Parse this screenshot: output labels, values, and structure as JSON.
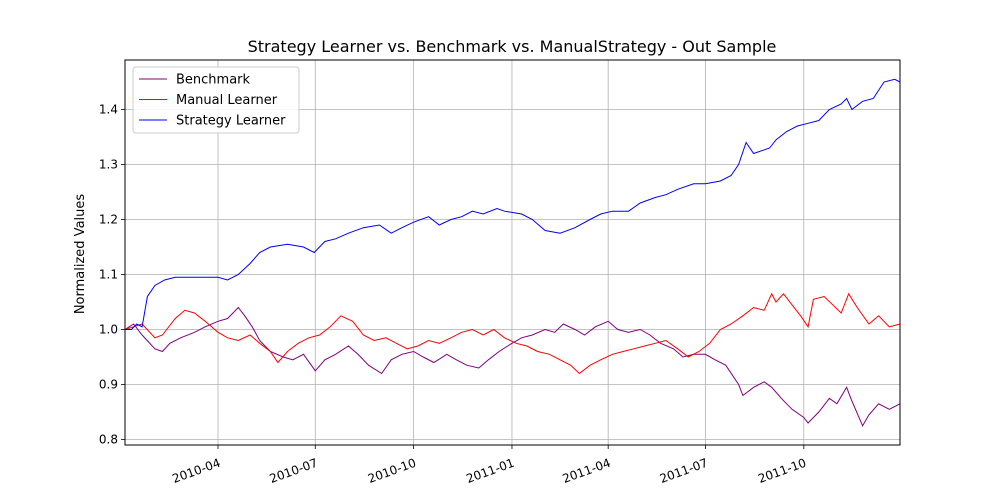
{
  "chart_data": {
    "type": "line",
    "title": "Strategy Learner vs. Benchmark vs. ManualStrategy - Out Sample",
    "xlabel": "",
    "ylabel": "Normalized Values",
    "x_ticks": [
      "2010-04",
      "2010-07",
      "2010-10",
      "2011-01",
      "2011-04",
      "2011-07",
      "2011-10"
    ],
    "x_range": [
      "2010-01-04",
      "2011-12-30"
    ],
    "y_ticks": [
      "0.8",
      "0.9",
      "1.0",
      "1.1",
      "1.2",
      "1.3",
      "1.4"
    ],
    "ylim": [
      0.79,
      1.49
    ],
    "grid": true,
    "legend_position": "upper-left",
    "series": [
      {
        "name": "Benchmark",
        "color": "#800080",
        "points": [
          [
            "2010-01-04",
            1.0
          ],
          [
            "2010-01-12",
            1.01
          ],
          [
            "2010-01-20",
            0.99
          ],
          [
            "2010-02-01",
            0.965
          ],
          [
            "2010-02-08",
            0.96
          ],
          [
            "2010-02-15",
            0.975
          ],
          [
            "2010-02-25",
            0.985
          ],
          [
            "2010-03-10",
            0.995
          ],
          [
            "2010-03-20",
            1.005
          ],
          [
            "2010-04-01",
            1.015
          ],
          [
            "2010-04-10",
            1.02
          ],
          [
            "2010-04-20",
            1.04
          ],
          [
            "2010-04-26",
            1.025
          ],
          [
            "2010-05-03",
            1.005
          ],
          [
            "2010-05-10",
            0.98
          ],
          [
            "2010-05-20",
            0.96
          ],
          [
            "2010-06-01",
            0.95
          ],
          [
            "2010-06-10",
            0.945
          ],
          [
            "2010-06-20",
            0.955
          ],
          [
            "2010-07-01",
            0.925
          ],
          [
            "2010-07-10",
            0.945
          ],
          [
            "2010-07-20",
            0.955
          ],
          [
            "2010-08-01",
            0.97
          ],
          [
            "2010-08-10",
            0.955
          ],
          [
            "2010-08-20",
            0.935
          ],
          [
            "2010-09-01",
            0.92
          ],
          [
            "2010-09-10",
            0.945
          ],
          [
            "2010-09-20",
            0.955
          ],
          [
            "2010-10-01",
            0.96
          ],
          [
            "2010-10-10",
            0.95
          ],
          [
            "2010-10-20",
            0.94
          ],
          [
            "2010-11-01",
            0.955
          ],
          [
            "2010-11-10",
            0.945
          ],
          [
            "2010-11-20",
            0.935
          ],
          [
            "2010-12-01",
            0.93
          ],
          [
            "2010-12-10",
            0.945
          ],
          [
            "2010-12-20",
            0.96
          ],
          [
            "2011-01-01",
            0.975
          ],
          [
            "2011-01-10",
            0.985
          ],
          [
            "2011-01-20",
            0.99
          ],
          [
            "2011-02-01",
            1.0
          ],
          [
            "2011-02-10",
            0.995
          ],
          [
            "2011-02-18",
            1.01
          ],
          [
            "2011-03-01",
            1.0
          ],
          [
            "2011-03-10",
            0.99
          ],
          [
            "2011-03-20",
            1.005
          ],
          [
            "2011-04-01",
            1.015
          ],
          [
            "2011-04-10",
            1.0
          ],
          [
            "2011-04-20",
            0.995
          ],
          [
            "2011-05-01",
            1.0
          ],
          [
            "2011-05-10",
            0.99
          ],
          [
            "2011-05-20",
            0.975
          ],
          [
            "2011-06-01",
            0.965
          ],
          [
            "2011-06-10",
            0.95
          ],
          [
            "2011-06-20",
            0.955
          ],
          [
            "2011-07-01",
            0.955
          ],
          [
            "2011-07-10",
            0.945
          ],
          [
            "2011-07-20",
            0.935
          ],
          [
            "2011-08-01",
            0.9
          ],
          [
            "2011-08-05",
            0.88
          ],
          [
            "2011-08-15",
            0.895
          ],
          [
            "2011-08-25",
            0.905
          ],
          [
            "2011-09-01",
            0.895
          ],
          [
            "2011-09-10",
            0.875
          ],
          [
            "2011-09-20",
            0.855
          ],
          [
            "2011-10-01",
            0.84
          ],
          [
            "2011-10-05",
            0.83
          ],
          [
            "2011-10-15",
            0.85
          ],
          [
            "2011-10-25",
            0.875
          ],
          [
            "2011-11-01",
            0.865
          ],
          [
            "2011-11-10",
            0.895
          ],
          [
            "2011-11-15",
            0.87
          ],
          [
            "2011-11-25",
            0.825
          ],
          [
            "2011-12-01",
            0.845
          ],
          [
            "2011-12-10",
            0.865
          ],
          [
            "2011-12-20",
            0.855
          ],
          [
            "2011-12-30",
            0.865
          ]
        ]
      },
      {
        "name": "Manual Learner",
        "color": "#ff0000",
        "points": [
          [
            "2010-01-04",
            1.0
          ],
          [
            "2010-01-12",
            1.005
          ],
          [
            "2010-01-20",
            1.01
          ],
          [
            "2010-02-01",
            0.985
          ],
          [
            "2010-02-08",
            0.99
          ],
          [
            "2010-02-20",
            1.02
          ],
          [
            "2010-03-01",
            1.035
          ],
          [
            "2010-03-10",
            1.03
          ],
          [
            "2010-03-20",
            1.015
          ],
          [
            "2010-04-01",
            0.995
          ],
          [
            "2010-04-10",
            0.985
          ],
          [
            "2010-04-20",
            0.98
          ],
          [
            "2010-05-01",
            0.99
          ],
          [
            "2010-05-10",
            0.975
          ],
          [
            "2010-05-20",
            0.96
          ],
          [
            "2010-05-27",
            0.94
          ],
          [
            "2010-06-05",
            0.96
          ],
          [
            "2010-06-15",
            0.975
          ],
          [
            "2010-06-25",
            0.985
          ],
          [
            "2010-07-05",
            0.99
          ],
          [
            "2010-07-15",
            1.005
          ],
          [
            "2010-07-25",
            1.025
          ],
          [
            "2010-08-05",
            1.015
          ],
          [
            "2010-08-15",
            0.99
          ],
          [
            "2010-08-25",
            0.98
          ],
          [
            "2010-09-05",
            0.985
          ],
          [
            "2010-09-15",
            0.975
          ],
          [
            "2010-09-25",
            0.965
          ],
          [
            "2010-10-05",
            0.97
          ],
          [
            "2010-10-15",
            0.98
          ],
          [
            "2010-10-25",
            0.975
          ],
          [
            "2010-11-05",
            0.985
          ],
          [
            "2010-11-15",
            0.995
          ],
          [
            "2010-11-25",
            1.0
          ],
          [
            "2010-12-05",
            0.99
          ],
          [
            "2010-12-15",
            1.0
          ],
          [
            "2010-12-25",
            0.985
          ],
          [
            "2011-01-05",
            0.975
          ],
          [
            "2011-01-15",
            0.97
          ],
          [
            "2011-01-25",
            0.96
          ],
          [
            "2011-02-05",
            0.955
          ],
          [
            "2011-02-15",
            0.945
          ],
          [
            "2011-02-25",
            0.935
          ],
          [
            "2011-03-05",
            0.92
          ],
          [
            "2011-03-15",
            0.935
          ],
          [
            "2011-03-25",
            0.945
          ],
          [
            "2011-04-05",
            0.955
          ],
          [
            "2011-04-15",
            0.96
          ],
          [
            "2011-04-25",
            0.965
          ],
          [
            "2011-05-05",
            0.97
          ],
          [
            "2011-05-15",
            0.975
          ],
          [
            "2011-05-25",
            0.98
          ],
          [
            "2011-06-05",
            0.965
          ],
          [
            "2011-06-15",
            0.95
          ],
          [
            "2011-06-25",
            0.96
          ],
          [
            "2011-07-05",
            0.975
          ],
          [
            "2011-07-15",
            1.0
          ],
          [
            "2011-07-25",
            1.01
          ],
          [
            "2011-08-05",
            1.025
          ],
          [
            "2011-08-15",
            1.04
          ],
          [
            "2011-08-25",
            1.035
          ],
          [
            "2011-09-01",
            1.065
          ],
          [
            "2011-09-05",
            1.05
          ],
          [
            "2011-09-12",
            1.065
          ],
          [
            "2011-09-20",
            1.045
          ],
          [
            "2011-09-28",
            1.025
          ],
          [
            "2011-10-05",
            1.005
          ],
          [
            "2011-10-10",
            1.055
          ],
          [
            "2011-10-20",
            1.06
          ],
          [
            "2011-10-28",
            1.045
          ],
          [
            "2011-11-05",
            1.03
          ],
          [
            "2011-11-12",
            1.065
          ],
          [
            "2011-11-20",
            1.04
          ],
          [
            "2011-12-01",
            1.01
          ],
          [
            "2011-12-10",
            1.025
          ],
          [
            "2011-12-20",
            1.005
          ],
          [
            "2011-12-30",
            1.01
          ]
        ]
      },
      {
        "name": "Strategy Learner",
        "color": "#0000ff",
        "points": [
          [
            "2010-01-04",
            1.0
          ],
          [
            "2010-01-10",
            1.0
          ],
          [
            "2010-01-15",
            1.01
          ],
          [
            "2010-01-20",
            1.005
          ],
          [
            "2010-01-25",
            1.06
          ],
          [
            "2010-02-01",
            1.08
          ],
          [
            "2010-02-10",
            1.09
          ],
          [
            "2010-02-20",
            1.095
          ],
          [
            "2010-03-10",
            1.095
          ],
          [
            "2010-04-01",
            1.095
          ],
          [
            "2010-04-10",
            1.09
          ],
          [
            "2010-04-20",
            1.1
          ],
          [
            "2010-05-01",
            1.12
          ],
          [
            "2010-05-10",
            1.14
          ],
          [
            "2010-05-20",
            1.15
          ],
          [
            "2010-06-05",
            1.155
          ],
          [
            "2010-06-20",
            1.15
          ],
          [
            "2010-06-30",
            1.14
          ],
          [
            "2010-07-10",
            1.16
          ],
          [
            "2010-07-20",
            1.165
          ],
          [
            "2010-08-01",
            1.175
          ],
          [
            "2010-08-15",
            1.185
          ],
          [
            "2010-08-30",
            1.19
          ],
          [
            "2010-09-10",
            1.175
          ],
          [
            "2010-09-20",
            1.185
          ],
          [
            "2010-10-01",
            1.195
          ],
          [
            "2010-10-15",
            1.205
          ],
          [
            "2010-10-25",
            1.19
          ],
          [
            "2010-11-05",
            1.2
          ],
          [
            "2010-11-15",
            1.205
          ],
          [
            "2010-11-25",
            1.215
          ],
          [
            "2010-12-05",
            1.21
          ],
          [
            "2010-12-18",
            1.22
          ],
          [
            "2010-12-25",
            1.215
          ],
          [
            "2011-01-10",
            1.21
          ],
          [
            "2011-01-20",
            1.2
          ],
          [
            "2011-02-01",
            1.18
          ],
          [
            "2011-02-15",
            1.175
          ],
          [
            "2011-03-01",
            1.185
          ],
          [
            "2011-03-15",
            1.2
          ],
          [
            "2011-03-25",
            1.21
          ],
          [
            "2011-04-05",
            1.215
          ],
          [
            "2011-04-20",
            1.215
          ],
          [
            "2011-05-01",
            1.23
          ],
          [
            "2011-05-15",
            1.24
          ],
          [
            "2011-05-25",
            1.245
          ],
          [
            "2011-06-05",
            1.255
          ],
          [
            "2011-06-20",
            1.265
          ],
          [
            "2011-07-01",
            1.265
          ],
          [
            "2011-07-15",
            1.27
          ],
          [
            "2011-07-25",
            1.28
          ],
          [
            "2011-08-01",
            1.3
          ],
          [
            "2011-08-08",
            1.34
          ],
          [
            "2011-08-15",
            1.32
          ],
          [
            "2011-08-30",
            1.33
          ],
          [
            "2011-09-05",
            1.345
          ],
          [
            "2011-09-15",
            1.36
          ],
          [
            "2011-09-25",
            1.37
          ],
          [
            "2011-10-05",
            1.375
          ],
          [
            "2011-10-15",
            1.38
          ],
          [
            "2011-10-25",
            1.4
          ],
          [
            "2011-11-05",
            1.41
          ],
          [
            "2011-11-10",
            1.42
          ],
          [
            "2011-11-15",
            1.4
          ],
          [
            "2011-11-25",
            1.415
          ],
          [
            "2011-12-05",
            1.42
          ],
          [
            "2011-12-15",
            1.45
          ],
          [
            "2011-12-25",
            1.455
          ],
          [
            "2011-12-30",
            1.45
          ]
        ]
      }
    ]
  }
}
